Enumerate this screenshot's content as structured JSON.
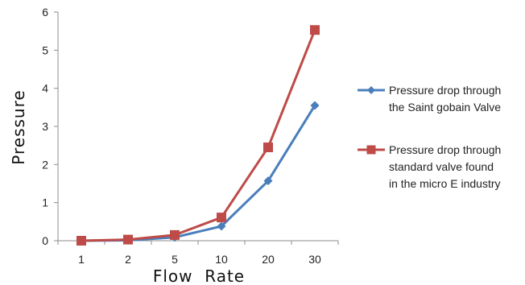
{
  "chart_data": {
    "type": "line",
    "categories": [
      "1",
      "2",
      "5",
      "10",
      "20",
      "30"
    ],
    "ylim": [
      0,
      6
    ],
    "yticks": [
      0,
      1,
      2,
      3,
      4,
      5,
      6
    ],
    "xlabel": "Flow  Rate",
    "ylabel": "Pressure",
    "legend_position": "right",
    "grid": false,
    "series": [
      {
        "name_lines": [
          "Pressure drop through",
          "the Saint gobain Valve"
        ],
        "marker": "diamond",
        "color": "#4a7ebb",
        "values": [
          0.0,
          0.01,
          0.09,
          0.38,
          1.57,
          3.55
        ]
      },
      {
        "name_lines": [
          "Pressure drop through",
          "standard valve found",
          "in the micro E industry"
        ],
        "marker": "square",
        "color": "#be4b48",
        "values": [
          0.0,
          0.03,
          0.15,
          0.61,
          2.45,
          5.53
        ]
      }
    ]
  }
}
